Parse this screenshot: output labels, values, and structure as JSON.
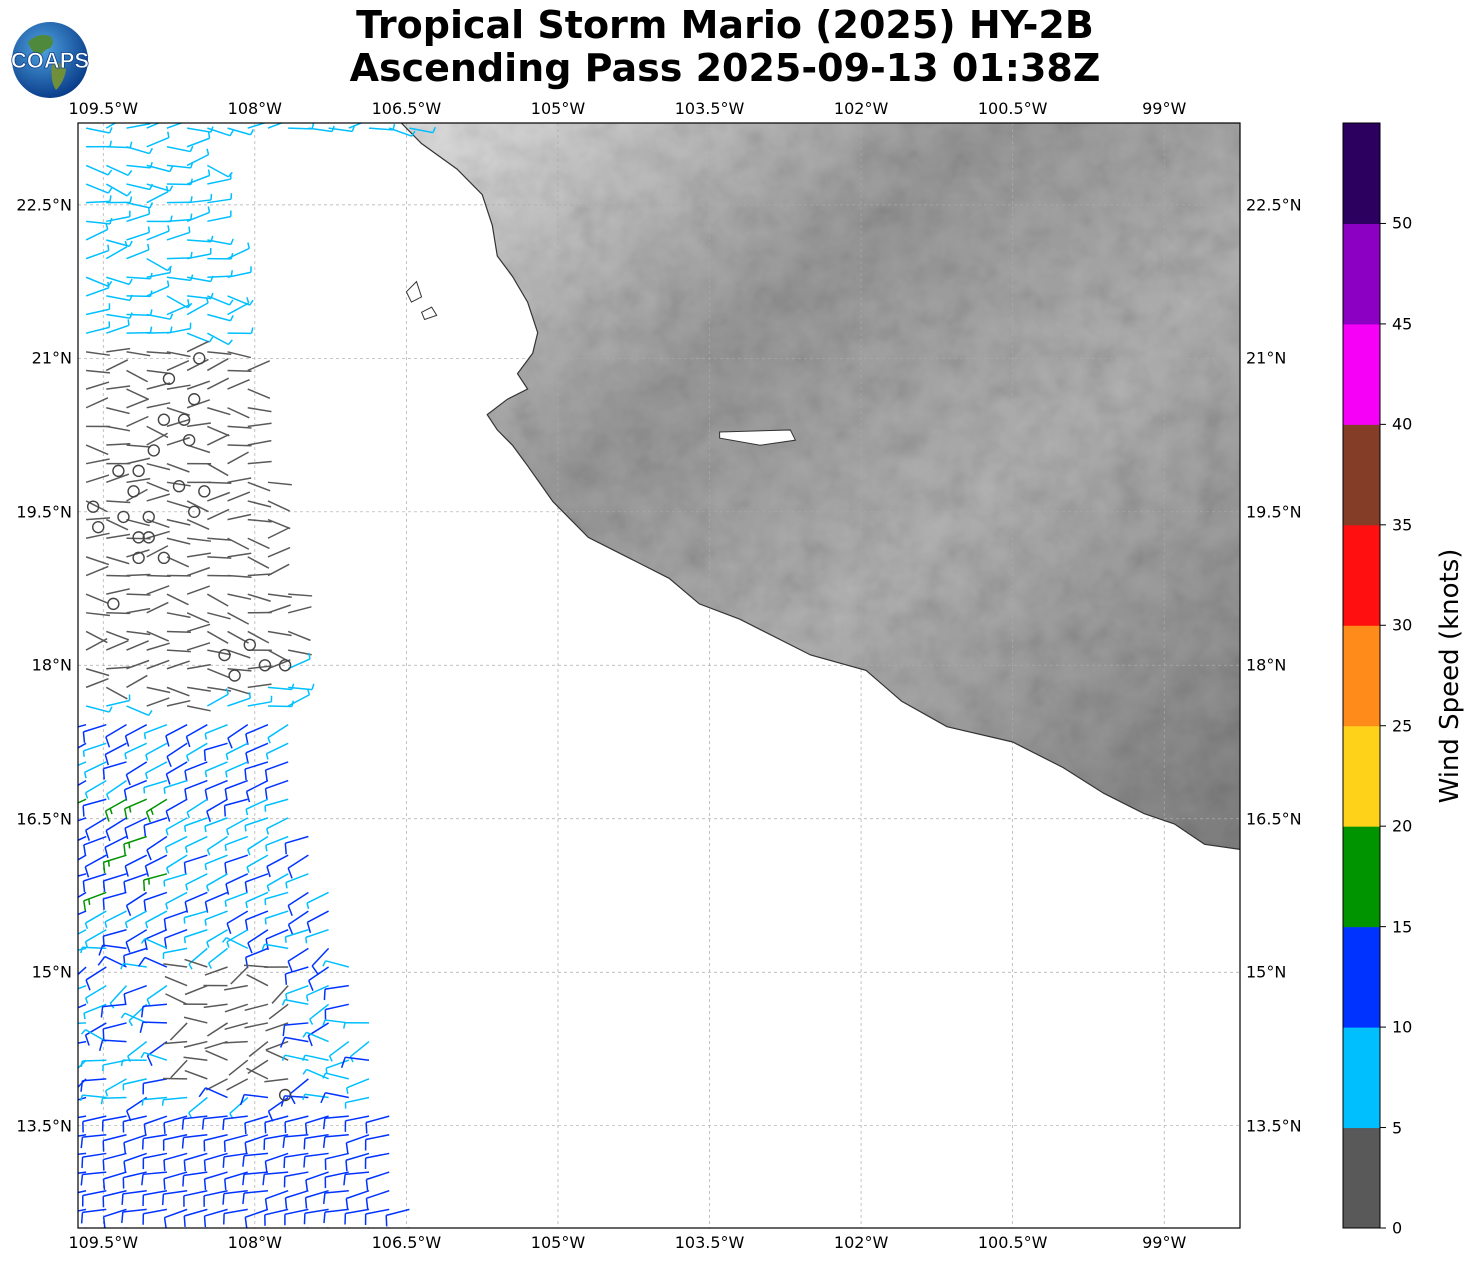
{
  "title": {
    "line1": "Tropical Storm Mario (2025) HY-2B",
    "line2": "Ascending Pass 2025-09-13 01:38Z"
  },
  "logo": {
    "text": "COAPS"
  },
  "map": {
    "lon_range": [
      -109.75,
      -98.25
    ],
    "lat_range": [
      12.5,
      23.3
    ],
    "lon_ticks": [
      {
        "value": -109.5,
        "label": "109.5°W"
      },
      {
        "value": -108,
        "label": "108°W"
      },
      {
        "value": -106.5,
        "label": "106.5°W"
      },
      {
        "value": -105,
        "label": "105°W"
      },
      {
        "value": -103.5,
        "label": "103.5°W"
      },
      {
        "value": -102,
        "label": "102°W"
      },
      {
        "value": -100.5,
        "label": "100.5°W"
      },
      {
        "value": -99,
        "label": "99°W"
      }
    ],
    "lat_ticks": [
      {
        "value": 22.5,
        "label": "22.5°N"
      },
      {
        "value": 21,
        "label": "21°N"
      },
      {
        "value": 19.5,
        "label": "19.5°N"
      },
      {
        "value": 18,
        "label": "18°N"
      },
      {
        "value": 16.5,
        "label": "16.5°N"
      },
      {
        "value": 15,
        "label": "15°N"
      },
      {
        "value": 13.5,
        "label": "13.5°N"
      }
    ],
    "gridlines": true,
    "land_fill": "grayscale terrain shading",
    "coastline": [
      [
        -106.55,
        23.3
      ],
      [
        -106.35,
        23.1
      ],
      [
        -106.0,
        22.85
      ],
      [
        -105.75,
        22.6
      ],
      [
        -105.65,
        22.3
      ],
      [
        -105.6,
        22.0
      ],
      [
        -105.45,
        21.8
      ],
      [
        -105.3,
        21.55
      ],
      [
        -105.2,
        21.25
      ],
      [
        -105.25,
        21.05
      ],
      [
        -105.4,
        20.85
      ],
      [
        -105.3,
        20.7
      ],
      [
        -105.5,
        20.6
      ],
      [
        -105.7,
        20.45
      ],
      [
        -105.6,
        20.3
      ],
      [
        -105.45,
        20.15
      ],
      [
        -105.3,
        19.95
      ],
      [
        -105.05,
        19.6
      ],
      [
        -104.7,
        19.25
      ],
      [
        -104.3,
        19.05
      ],
      [
        -103.9,
        18.85
      ],
      [
        -103.6,
        18.6
      ],
      [
        -103.2,
        18.45
      ],
      [
        -102.5,
        18.1
      ],
      [
        -101.95,
        17.95
      ],
      [
        -101.6,
        17.65
      ],
      [
        -101.15,
        17.4
      ],
      [
        -100.5,
        17.25
      ],
      [
        -100.0,
        17.0
      ],
      [
        -99.6,
        16.75
      ],
      [
        -99.2,
        16.55
      ],
      [
        -98.9,
        16.45
      ],
      [
        -98.6,
        16.25
      ],
      [
        -98.25,
        16.2
      ]
    ],
    "islands": [
      [
        [
          -106.5,
          21.65
        ],
        [
          -106.4,
          21.75
        ],
        [
          -106.35,
          21.6
        ],
        [
          -106.45,
          21.55
        ]
      ],
      [
        [
          -106.35,
          21.45
        ],
        [
          -106.25,
          21.5
        ],
        [
          -106.2,
          21.42
        ],
        [
          -106.32,
          21.38
        ]
      ]
    ],
    "lakes": [
      [
        [
          -103.4,
          20.28
        ],
        [
          -102.7,
          20.3
        ],
        [
          -102.65,
          20.2
        ],
        [
          -103.0,
          20.15
        ],
        [
          -103.4,
          20.22
        ]
      ]
    ]
  },
  "chart_data": {
    "type": "wind-barbs",
    "units": "knots",
    "color_bins": [
      {
        "min": 0,
        "max": 5,
        "color": "#595959"
      },
      {
        "min": 5,
        "max": 10,
        "color": "#00bfff"
      },
      {
        "min": 10,
        "max": 15,
        "color": "#0033ff"
      },
      {
        "min": 15,
        "max": 20,
        "color": "#009400"
      },
      {
        "min": 20,
        "max": 25,
        "color": "#ffd21a"
      },
      {
        "min": 25,
        "max": 30,
        "color": "#ff8c1a"
      },
      {
        "min": 30,
        "max": 35,
        "color": "#ff0f0f"
      },
      {
        "min": 35,
        "max": 40,
        "color": "#843d26"
      },
      {
        "min": 40,
        "max": 45,
        "color": "#f700f7"
      },
      {
        "min": 45,
        "max": 50,
        "color": "#8c00c4"
      },
      {
        "min": 50,
        "max": 55,
        "color": "#2b005e"
      }
    ],
    "swath": {
      "lat_top": 23.25,
      "lat_bottom": 12.5,
      "east_edge": [
        [
          23.2,
          -108.5
        ],
        [
          18.5,
          -107.6
        ],
        [
          16.5,
          -107.5
        ],
        [
          14.5,
          -106.85
        ],
        [
          12.6,
          -106.45
        ]
      ],
      "rows": 60
    },
    "calm_circles": [
      [
        21.0,
        -108.55
      ],
      [
        20.8,
        -108.85
      ],
      [
        20.6,
        -108.6
      ],
      [
        20.4,
        -108.7
      ],
      [
        20.4,
        -108.9
      ],
      [
        20.2,
        -108.65
      ],
      [
        20.1,
        -109.0
      ],
      [
        19.9,
        -109.35
      ],
      [
        19.9,
        -109.15
      ],
      [
        19.75,
        -108.75
      ],
      [
        19.7,
        -108.5
      ],
      [
        19.7,
        -109.2
      ],
      [
        19.55,
        -109.6
      ],
      [
        19.5,
        -108.6
      ],
      [
        19.45,
        -109.05
      ],
      [
        19.45,
        -109.3
      ],
      [
        19.35,
        -109.55
      ],
      [
        19.25,
        -109.05
      ],
      [
        19.25,
        -109.15
      ],
      [
        19.05,
        -108.9
      ],
      [
        19.05,
        -109.15
      ],
      [
        18.6,
        -109.4
      ],
      [
        18.2,
        -108.05
      ],
      [
        18.1,
        -108.3
      ],
      [
        18.0,
        -107.9
      ],
      [
        18.0,
        -107.7
      ],
      [
        17.9,
        -108.2
      ],
      [
        13.8,
        -107.7
      ]
    ],
    "colorbar": {
      "label": "Wind Speed (knots)",
      "ticks": [
        "0",
        "5",
        "10",
        "15",
        "20",
        "25",
        "30",
        "35",
        "40",
        "45",
        "50"
      ]
    }
  }
}
